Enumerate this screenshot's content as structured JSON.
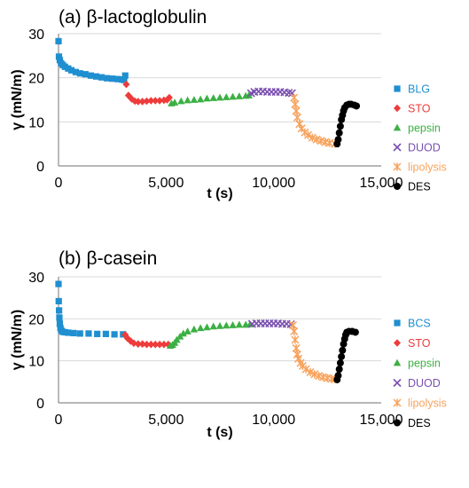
{
  "chart_data": [
    {
      "type": "scatter",
      "title": "(a) β-lactoglobulin",
      "xlabel": "t (s)",
      "ylabel": "γ (mN/m)",
      "xlim": [
        0,
        15000
      ],
      "ylim": [
        0,
        30
      ],
      "xticks": [
        "0",
        "5,000",
        "10,000",
        "15,000"
      ],
      "yticks": [
        "0",
        "10",
        "20",
        "30"
      ],
      "grid": "horizontal",
      "legend_position": "right",
      "series": [
        {
          "name": "BLG",
          "color": "#1f8fd0",
          "marker": "square",
          "x": [
            0,
            20,
            60,
            120,
            200,
            300,
            450,
            600,
            800,
            1000,
            1250,
            1500,
            1750,
            2000,
            2250,
            2500,
            2750,
            2950,
            3050,
            3100
          ],
          "y": [
            28.3,
            24.8,
            24.0,
            23.3,
            22.9,
            22.5,
            22.1,
            21.7,
            21.3,
            21.0,
            20.8,
            20.5,
            20.3,
            20.1,
            19.9,
            19.8,
            19.7,
            19.6,
            19.5,
            20.5
          ]
        },
        {
          "name": "STO",
          "color": "#ee3b3b",
          "marker": "diamond",
          "x": [
            3150,
            3250,
            3400,
            3550,
            3700,
            3900,
            4100,
            4300,
            4500,
            4700,
            4900,
            5050,
            5150
          ],
          "y": [
            18.5,
            16.0,
            15.2,
            14.7,
            14.6,
            14.6,
            14.7,
            14.8,
            14.8,
            14.8,
            14.9,
            15.0,
            15.5
          ]
        },
        {
          "name": "pepsin",
          "color": "#3cb043",
          "marker": "triangle",
          "x": [
            5250,
            5400,
            5700,
            6000,
            6300,
            6600,
            6900,
            7200,
            7500,
            7800,
            8100,
            8400,
            8700,
            8850
          ],
          "y": [
            14.2,
            14.4,
            14.7,
            14.9,
            15.0,
            15.1,
            15.3,
            15.4,
            15.5,
            15.6,
            15.7,
            15.8,
            15.9,
            16.0
          ]
        },
        {
          "name": "DUOD",
          "color": "#7a4fb0",
          "marker": "x",
          "x": [
            8950,
            9100,
            9300,
            9500,
            9700,
            9900,
            10100,
            10300,
            10500,
            10700,
            10850
          ],
          "y": [
            16.5,
            16.8,
            16.9,
            16.9,
            16.8,
            16.8,
            16.8,
            16.8,
            16.7,
            16.6,
            16.5
          ]
        },
        {
          "name": "lipolysis",
          "color": "#f7a35c",
          "marker": "star",
          "x": [
            10950,
            11000,
            11050,
            11100,
            11200,
            11300,
            11450,
            11600,
            11800,
            12000,
            12200,
            12400,
            12600,
            12850
          ],
          "y": [
            15.5,
            14.0,
            12.5,
            11.0,
            9.5,
            8.5,
            7.6,
            7.0,
            6.4,
            6.0,
            5.7,
            5.4,
            5.2,
            5.0
          ]
        },
        {
          "name": "DES",
          "color": "#000000",
          "marker": "circle",
          "x": [
            12950,
            13000,
            13050,
            13100,
            13150,
            13200,
            13250,
            13300,
            13400,
            13500,
            13600,
            13750,
            13850
          ],
          "y": [
            5.0,
            6.0,
            7.5,
            9.0,
            10.5,
            11.5,
            12.5,
            13.2,
            13.8,
            14.0,
            14.0,
            13.8,
            13.6
          ]
        }
      ]
    },
    {
      "type": "scatter",
      "title": "(b) β-casein",
      "xlabel": "t (s)",
      "ylabel": "γ (mN/m)",
      "xlim": [
        0,
        15000
      ],
      "ylim": [
        0,
        30
      ],
      "xticks": [
        "0",
        "5,000",
        "10,000",
        "15,000"
      ],
      "yticks": [
        "0",
        "10",
        "20",
        "30"
      ],
      "grid": "horizontal",
      "legend_position": "right",
      "series": [
        {
          "name": "BCS",
          "color": "#1f8fd0",
          "marker": "square",
          "x": [
            0,
            10,
            25,
            40,
            60,
            90,
            130,
            200,
            300,
            450,
            700,
            1000,
            1400,
            1800,
            2200,
            2600,
            3000
          ],
          "y": [
            28.3,
            24.2,
            22.0,
            20.3,
            18.8,
            17.8,
            17.2,
            16.9,
            16.8,
            16.7,
            16.6,
            16.5,
            16.5,
            16.4,
            16.4,
            16.3,
            16.3
          ]
        },
        {
          "name": "STO",
          "color": "#ee3b3b",
          "marker": "diamond",
          "x": [
            3100,
            3200,
            3350,
            3500,
            3700,
            3900,
            4100,
            4300,
            4500,
            4700,
            4900,
            5100
          ],
          "y": [
            16.2,
            15.4,
            14.7,
            14.2,
            14.0,
            14.0,
            13.9,
            13.9,
            13.9,
            13.9,
            13.9,
            13.9
          ]
        },
        {
          "name": "pepsin",
          "color": "#3cb043",
          "marker": "triangle",
          "x": [
            5200,
            5300,
            5400,
            5500,
            5650,
            5800,
            6000,
            6300,
            6600,
            6900,
            7200,
            7500,
            7800,
            8100,
            8400,
            8700,
            8900
          ],
          "y": [
            13.6,
            13.8,
            14.3,
            15.0,
            15.8,
            16.5,
            17.0,
            17.5,
            17.8,
            18.0,
            18.2,
            18.3,
            18.4,
            18.5,
            18.6,
            18.6,
            18.7
          ]
        },
        {
          "name": "DUOD",
          "color": "#7a4fb0",
          "marker": "x",
          "x": [
            9000,
            9200,
            9400,
            9600,
            9800,
            10000,
            10200,
            10400,
            10600,
            10800
          ],
          "y": [
            18.8,
            18.9,
            18.9,
            18.9,
            18.9,
            18.9,
            18.9,
            18.8,
            18.8,
            18.7
          ]
        },
        {
          "name": "lipolysis",
          "color": "#f7a35c",
          "marker": "star",
          "x": [
            10900,
            10950,
            11000,
            11050,
            11100,
            11150,
            11250,
            11350,
            11500,
            11700,
            11900,
            12100,
            12300,
            12500,
            12700,
            12850
          ],
          "y": [
            18.5,
            17.0,
            15.0,
            13.0,
            11.5,
            10.5,
            9.5,
            8.8,
            8.0,
            7.3,
            6.8,
            6.4,
            6.1,
            5.9,
            5.7,
            5.6
          ]
        },
        {
          "name": "DES",
          "color": "#000000",
          "marker": "circle",
          "x": [
            12950,
            13000,
            13050,
            13100,
            13150,
            13200,
            13250,
            13300,
            13350,
            13400,
            13500,
            13650,
            13800
          ],
          "y": [
            5.5,
            6.5,
            8.0,
            9.5,
            11.0,
            12.5,
            14.0,
            15.2,
            16.2,
            16.8,
            17.0,
            17.0,
            16.8
          ]
        }
      ]
    }
  ]
}
